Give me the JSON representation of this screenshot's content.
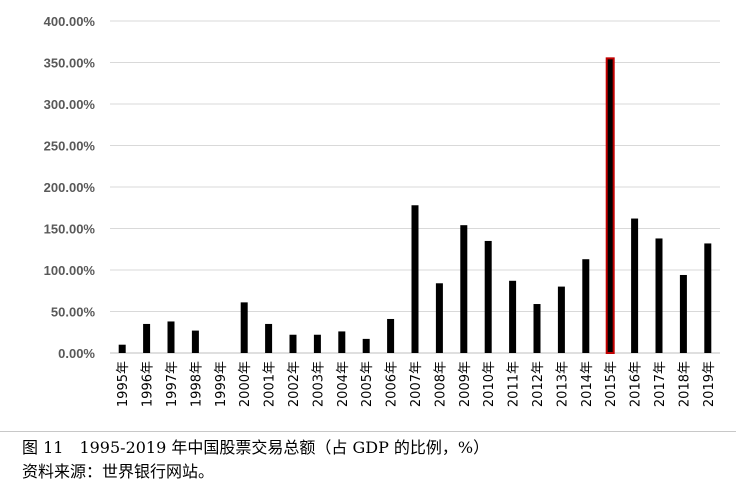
{
  "chart_data": {
    "type": "bar",
    "categories": [
      "1995年",
      "1996年",
      "1997年",
      "1998年",
      "1999年",
      "2000年",
      "2001年",
      "2002年",
      "2003年",
      "2004年",
      "2005年",
      "2006年",
      "2007年",
      "2008年",
      "2009年",
      "2010年",
      "2011年",
      "2012年",
      "2013年",
      "2014年",
      "2015年",
      "2016年",
      "2017年",
      "2018年",
      "2019年"
    ],
    "values": [
      10,
      35,
      38,
      27,
      0,
      61,
      35,
      22,
      22,
      26,
      17,
      41,
      178,
      84,
      154,
      135,
      87,
      59,
      80,
      113,
      355,
      162,
      138,
      94,
      132
    ],
    "ylim": [
      0,
      400
    ],
    "yticks": [
      "0.00%",
      "50.00%",
      "100.00%",
      "150.00%",
      "200.00%",
      "250.00%",
      "300.00%",
      "350.00%",
      "400.00%"
    ],
    "grid": true,
    "bar_color": "#000000",
    "highlight_index": 20,
    "highlight_color": "#c00000"
  },
  "caption": {
    "title": "图 11　1995-2019 年中国股票交易总额（占 GDP 的比例，%）",
    "source": "资料来源：世界银行网站。"
  }
}
